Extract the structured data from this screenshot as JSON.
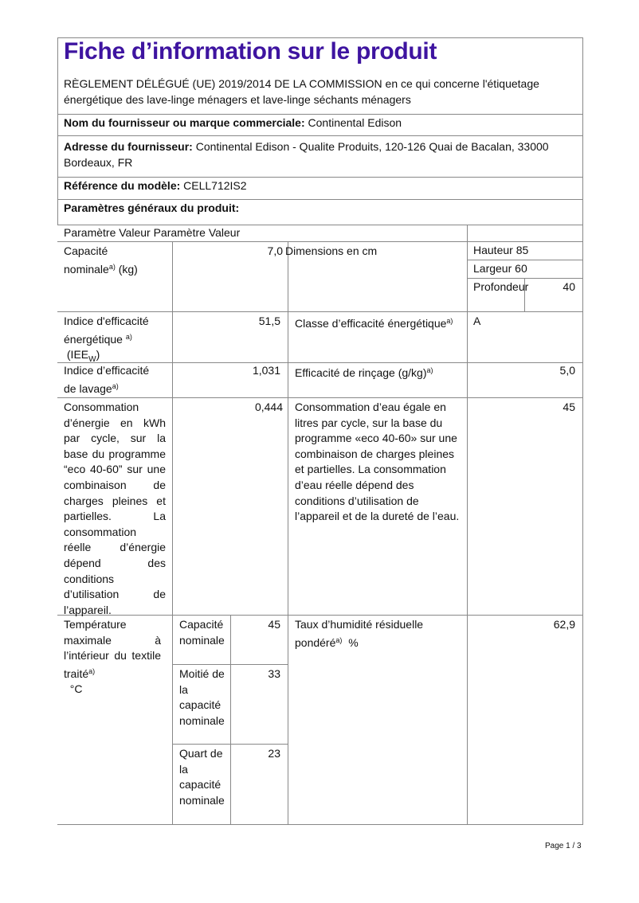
{
  "title": "Fiche d’information sur le produit",
  "regulation": "RÈGLEMENT DÉLÉGUÉ (UE) 2019/2014 DE LA COMMISSION en ce qui concerne l'étiquetage énergétique des lave-linge ménagers et lave-linge séchants ménagers",
  "supplier": {
    "label": "Nom du fournisseur ou marque commerciale:",
    "value": "Continental Edison"
  },
  "address": {
    "label": "Adresse du fournisseur:",
    "value": "Continental Edison - Qualite Produits, 120-126 Quai de Bacalan, 33000 Bordeaux, FR"
  },
  "model": {
    "label": "Référence du modèle:",
    "value": "CELL712IS2"
  },
  "general_params": "Paramètres généraux du produit:",
  "table": {
    "header": "Paramètre Valeur Paramètre Valeur",
    "capacity": {
      "label": "Capacité nominale",
      "unit": "(kg)",
      "sup": "a)",
      "value": "7,0"
    },
    "dimensions": {
      "label": "Dimensions en cm",
      "height_label": "Hauteur",
      "height": "85",
      "width_label": "Largeur",
      "width": "60",
      "depth_label": "Profondeur",
      "depth": "40"
    },
    "eei": {
      "label": "Indice d'efficacité énergétique",
      "unit": "(IEE",
      "unit_sub": "W",
      "sup": "a)",
      "value": "51,5"
    },
    "energy_class": {
      "label": "Classe d’efficacité énergétique",
      "sup": "a)",
      "value": "A"
    },
    "washing_index": {
      "label": "Indice d’efficacité de lavage",
      "sup": "a)",
      "value": "1,031"
    },
    "rinsing": {
      "label": "Efficacité de rinçage (g/kg)",
      "sup": "a)",
      "value": "5,0"
    },
    "energy": {
      "label": "Consommation d’énergie en kWh par cycle, sur la base du programme “eco 40-60” sur une combinaison de charges pleines et partielles. La consommation réelle d’énergie dépend des conditions d’utilisation de l’appareil.",
      "value": "0,444"
    },
    "water": {
      "label": "Consommation d’eau égale en litres par cycle, sur la base du programme «eco 40-60» sur une combinaison de charges pleines et partielles. La consommation d’eau réelle dépend des conditions d’utilisation de l’appareil et de la dureté de l’eau.",
      "value": "45"
    },
    "temperature": {
      "label": "Température maximale à l’intérieur du textile traité",
      "sup": "a)",
      "unit": "°C",
      "rows": [
        {
          "label": "Capacité nominale",
          "value": "45"
        },
        {
          "label": "Moitié de la capacité nominale",
          "value": "33"
        },
        {
          "label": "Quart de la capacité nominale",
          "value": "23"
        }
      ]
    },
    "moisture": {
      "label": "Taux d’humidité résiduelle pondéré",
      "sup": "a)",
      "unit": "%",
      "value": "62,9"
    }
  },
  "footer": {
    "page": "Page 1 / 3"
  }
}
